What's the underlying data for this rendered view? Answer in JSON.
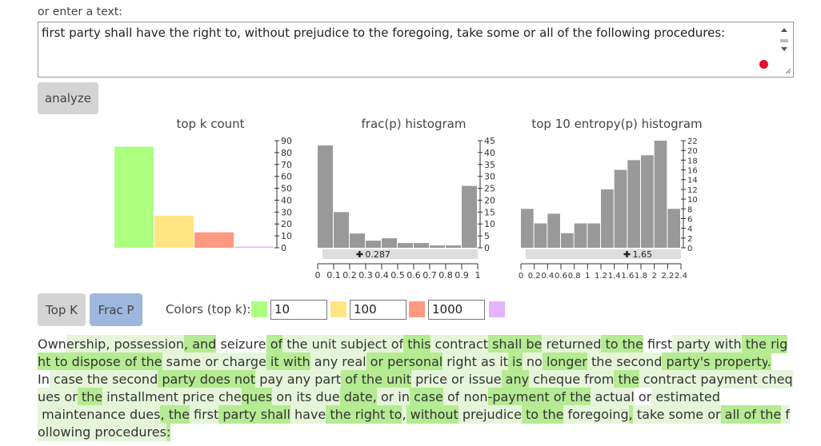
{
  "input_label": "or enter a text:",
  "input_text": "first party shall have the right to, without prejudice to the foregoing, take some or all of the following procedures:",
  "analyze": "analyze",
  "charts": [
    {
      "type": "bar",
      "title": "top k count",
      "values": [
        85,
        27,
        13,
        1
      ],
      "colors": [
        "#adff80",
        "#ffe680",
        "#ff9980",
        "#e6b3ff"
      ],
      "ylim": [
        0,
        90
      ],
      "yticks": [
        0,
        10,
        20,
        30,
        40,
        50,
        60,
        70,
        80,
        90
      ]
    },
    {
      "type": "histogram",
      "title": "frac(p) histogram",
      "bins": [
        0,
        0.1,
        0.2,
        0.3,
        0.4,
        0.5,
        0.6,
        0.7,
        0.8,
        0.9,
        1
      ],
      "values": [
        43,
        15,
        6,
        3,
        4,
        2,
        2,
        1,
        1,
        26
      ],
      "color": "#999999",
      "xlim": [
        0,
        1
      ],
      "xticks": [
        0,
        0.1,
        0.2,
        0.3,
        0.4,
        0.5,
        0.6,
        0.7,
        0.8,
        0.9,
        1
      ],
      "ylim": [
        0,
        45
      ],
      "yticks": [
        0,
        5,
        10,
        15,
        20,
        25,
        30,
        35,
        40,
        45
      ],
      "marker": 0.287
    },
    {
      "type": "histogram",
      "title": "top 10 entropy(p) histogram",
      "bins": [
        0,
        0.2,
        0.4,
        0.6,
        0.8,
        1,
        1.2,
        1.4,
        1.6,
        1.8,
        2,
        2.2,
        2.4
      ],
      "values": [
        8,
        5,
        7,
        3,
        5,
        5,
        12,
        16,
        18,
        19,
        22,
        8
      ],
      "color": "#999999",
      "xlim": [
        0,
        2.4
      ],
      "xticks": [
        0,
        0.2,
        0.4,
        0.6,
        0.8,
        1,
        1.2,
        1.4,
        1.6,
        1.8,
        2,
        2.2,
        2.4
      ],
      "ylim": [
        0,
        22
      ],
      "yticks": [
        0,
        2,
        4,
        6,
        8,
        10,
        12,
        14,
        16,
        18,
        20,
        22
      ],
      "marker": 1.65
    }
  ],
  "modes": [
    "Top K",
    "Frac P"
  ],
  "colors_label": "Colors (top k):",
  "thresholds": [
    "10",
    "100",
    "1000"
  ],
  "shades": [
    "#ffffff",
    "#e6f5da",
    "#b5eb92"
  ],
  "tokens": [
    {
      "text": "Own",
      "shade": 0
    },
    {
      "text": "ership",
      "shade": 1
    },
    {
      "text": ",",
      "shade": 1
    },
    {
      "text": " possession",
      "shade": 1
    },
    {
      "text": ", and",
      "shade": 2
    },
    {
      "text": " seizure",
      "shade": 0
    },
    {
      "text": " of",
      "shade": 2
    },
    {
      "text": " the",
      "shade": 1
    },
    {
      "text": " unit",
      "shade": 1
    },
    {
      "text": " subject",
      "shade": 1
    },
    {
      "text": " of",
      "shade": 1
    },
    {
      "text": " this",
      "shade": 2
    },
    {
      "text": " contract",
      "shade": 1
    },
    {
      "text": " shall",
      "shade": 2
    },
    {
      "text": " be",
      "shade": 2
    },
    {
      "text": " returned",
      "shade": 1
    },
    {
      "text": " to",
      "shade": 2
    },
    {
      "text": " the",
      "shade": 2
    },
    {
      "text": " first",
      "shade": 0
    },
    {
      "text": " party",
      "shade": 1
    },
    {
      "text": " with",
      "shade": 1
    },
    {
      "text": " the",
      "shade": 2
    },
    {
      "text": " right",
      "shade": 2
    },
    {
      "text": " to",
      "shade": 2
    },
    {
      "text": " dispose",
      "shade": 2
    },
    {
      "text": " of",
      "shade": 2
    },
    {
      "text": " the",
      "shade": 2
    },
    {
      "text": " same",
      "shade": 1
    },
    {
      "text": " or",
      "shade": 1
    },
    {
      "text": " charge",
      "shade": 1
    },
    {
      "text": " it",
      "shade": 2
    },
    {
      "text": " with",
      "shade": 2
    },
    {
      "text": " any",
      "shade": 1
    },
    {
      "text": " real",
      "shade": 1
    },
    {
      "text": " or",
      "shade": 2
    },
    {
      "text": " personal",
      "shade": 2
    },
    {
      "text": " right",
      "shade": 1
    },
    {
      "text": " as",
      "shade": 1
    },
    {
      "text": " it",
      "shade": 1
    },
    {
      "text": " is",
      "shade": 2
    },
    {
      "text": " no",
      "shade": 1
    },
    {
      "text": " longer",
      "shade": 2
    },
    {
      "text": " the",
      "shade": 1
    },
    {
      "text": " second",
      "shade": 1
    },
    {
      "text": " party's",
      "shade": 2
    },
    {
      "text": " property",
      "shade": 2
    },
    {
      "text": ".",
      "shade": 2
    },
    {
      "text": "\nIn",
      "shade": 0
    },
    {
      "text": " case",
      "shade": 1
    },
    {
      "text": " the",
      "shade": 1
    },
    {
      "text": " second",
      "shade": 1
    },
    {
      "text": " party",
      "shade": 2
    },
    {
      "text": " does",
      "shade": 2
    },
    {
      "text": " not",
      "shade": 2
    },
    {
      "text": " pay",
      "shade": 1
    },
    {
      "text": " any",
      "shade": 1
    },
    {
      "text": " part",
      "shade": 1
    },
    {
      "text": " of",
      "shade": 2
    },
    {
      "text": " the",
      "shade": 2
    },
    {
      "text": " unit",
      "shade": 2
    },
    {
      "text": " price",
      "shade": 1
    },
    {
      "text": " or",
      "shade": 1
    },
    {
      "text": " issue",
      "shade": 1
    },
    {
      "text": " any",
      "shade": 2
    },
    {
      "text": " cheque",
      "shade": 1
    },
    {
      "text": " from",
      "shade": 1
    },
    {
      "text": " the",
      "shade": 2
    },
    {
      "text": " contract",
      "shade": 1
    },
    {
      "text": " payment",
      "shade": 1
    },
    {
      "text": " cheques",
      "shade": 1
    },
    {
      "text": " or",
      "shade": 1
    },
    {
      "text": " the",
      "shade": 2
    },
    {
      "text": " installment",
      "shade": 1
    },
    {
      "text": " price",
      "shade": 1
    },
    {
      "text": " che",
      "shade": 1
    },
    {
      "text": "ques",
      "shade": 2
    },
    {
      "text": " on",
      "shade": 1
    },
    {
      "text": " its",
      "shade": 1
    },
    {
      "text": " due",
      "shade": 1
    },
    {
      "text": " date",
      "shade": 2
    },
    {
      "text": ",",
      "shade": 2
    },
    {
      "text": " or",
      "shade": 1
    },
    {
      "text": " in",
      "shade": 1
    },
    {
      "text": " case",
      "shade": 2
    },
    {
      "text": " of",
      "shade": 1
    },
    {
      "text": " non",
      "shade": 1
    },
    {
      "text": "-",
      "shade": 2
    },
    {
      "text": "payment",
      "shade": 2
    },
    {
      "text": " of",
      "shade": 2
    },
    {
      "text": " the",
      "shade": 2
    },
    {
      "text": " actual",
      "shade": 1
    },
    {
      "text": " or",
      "shade": 0
    },
    {
      "text": " estimated",
      "shade": 1
    },
    {
      "text": "\n maintenance",
      "shade": 1
    },
    {
      "text": " dues",
      "shade": 1
    },
    {
      "text": ",",
      "shade": 2
    },
    {
      "text": " the",
      "shade": 2
    },
    {
      "text": " first",
      "shade": 1
    },
    {
      "text": " party",
      "shade": 2
    },
    {
      "text": " shall",
      "shade": 2
    },
    {
      "text": " have",
      "shade": 1
    },
    {
      "text": " the",
      "shade": 2
    },
    {
      "text": " right",
      "shade": 2
    },
    {
      "text": " to",
      "shade": 2
    },
    {
      "text": ",",
      "shade": 1
    },
    {
      "text": " without",
      "shade": 2
    },
    {
      "text": " prejudice",
      "shade": 1
    },
    {
      "text": " to",
      "shade": 2
    },
    {
      "text": " the",
      "shade": 2
    },
    {
      "text": " foregoing",
      "shade": 1
    },
    {
      "text": ",",
      "shade": 2
    },
    {
      "text": " take",
      "shade": 1
    },
    {
      "text": " some",
      "shade": 1
    },
    {
      "text": " or",
      "shade": 1
    },
    {
      "text": " all",
      "shade": 2
    },
    {
      "text": " of",
      "shade": 2
    },
    {
      "text": " the",
      "shade": 2
    },
    {
      "text": " following",
      "shade": 1
    },
    {
      "text": " procedures",
      "shade": 1
    },
    {
      "text": ":",
      "shade": 2
    }
  ]
}
